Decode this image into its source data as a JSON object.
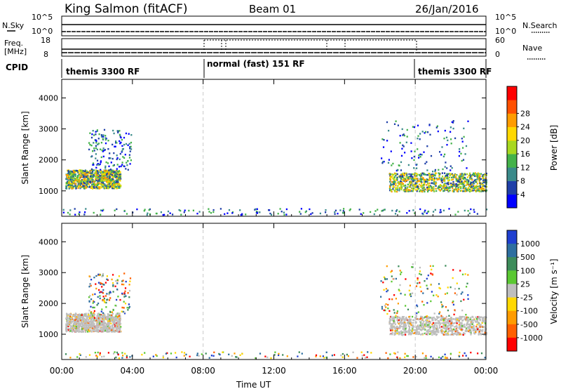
{
  "header": {
    "station": "King Salmon (fitACF)",
    "beam": "Beam 01",
    "date": "26/Jan/2016"
  },
  "strip_panels": {
    "nsky": {
      "label": "N.Sky",
      "ticks": [
        "10^5",
        "10^0"
      ]
    },
    "nsearch": {
      "label": "N.Search",
      "ticks": [
        "10^5",
        "10^0"
      ]
    },
    "freq": {
      "label_top": "Freq.",
      "label_unit": "[MHz]",
      "ticks": [
        "18",
        "8"
      ]
    },
    "nave": {
      "label": "Nave",
      "ticks": [
        "60",
        "0"
      ]
    },
    "cpid": {
      "label": "CPID"
    }
  },
  "cpid_segments": [
    {
      "text": "themis 3300 RF",
      "start_hour": 0
    },
    {
      "text": "normal (fast) 151 RF",
      "start_hour": 8
    },
    {
      "text": "themis 3300 RF",
      "start_hour": 20
    }
  ],
  "chart_data": [
    {
      "type": "heatmap",
      "name": "power",
      "ylabel": "Slant Range [km]",
      "xlabel": "Time UT",
      "x_ticks": [
        "00:00",
        "04:00",
        "08:00",
        "12:00",
        "16:00",
        "20:00",
        "00:00"
      ],
      "xlim_hours": [
        0,
        24
      ],
      "ylim": [
        180,
        4600
      ],
      "y_ticks": [
        1000,
        2000,
        3000,
        4000
      ],
      "colorbar": {
        "label": "Power [dB]",
        "ticks": [
          "4",
          "8",
          "12",
          "16",
          "20",
          "24",
          "28"
        ],
        "colors": [
          "#0000ff",
          "#1f3fa8",
          "#3a8a8a",
          "#44b24a",
          "#a8d820",
          "#ffd800",
          "#ff9c00",
          "#ff5000",
          "#ff0000"
        ]
      },
      "regions": [
        {
          "hours": [
            0.2,
            3.3
          ],
          "range_km": [
            1100,
            1700
          ],
          "level": "mid"
        },
        {
          "hours": [
            1.5,
            3.9
          ],
          "range_km": [
            1700,
            3000
          ],
          "level": "low",
          "sparse": true
        },
        {
          "hours": [
            18.5,
            24
          ],
          "range_km": [
            1000,
            1600
          ],
          "level": "mid"
        },
        {
          "hours": [
            18.0,
            23.0
          ],
          "range_km": [
            1600,
            3300
          ],
          "level": "low",
          "sparse": true
        },
        {
          "hours": [
            0,
            24
          ],
          "range_km": [
            250,
            450
          ],
          "level": "low",
          "sparse": true
        }
      ]
    },
    {
      "type": "heatmap",
      "name": "velocity",
      "ylabel": "Slant Range [km]",
      "xlabel": "Time UT",
      "x_ticks": [
        "00:00",
        "04:00",
        "08:00",
        "12:00",
        "16:00",
        "20:00",
        "00:00"
      ],
      "xlim_hours": [
        0,
        24
      ],
      "ylim": [
        180,
        4600
      ],
      "y_ticks": [
        1000,
        2000,
        3000,
        4000
      ],
      "colorbar": {
        "label": "Velocity [m s⁻¹]",
        "ticks": [
          "1000",
          "500",
          "100",
          "25",
          "-25",
          "-100",
          "-500",
          "-1000"
        ],
        "colors": [
          "#1f3fd0",
          "#2e6fa0",
          "#3d8c5a",
          "#5ac832",
          "#bebebe",
          "#ffd800",
          "#ff9c00",
          "#ff6000",
          "#ff0000"
        ]
      },
      "regions": [
        {
          "hours": [
            0.2,
            3.3
          ],
          "range_km": [
            1100,
            1700
          ],
          "level": "ground"
        },
        {
          "hours": [
            1.5,
            3.9
          ],
          "range_km": [
            1700,
            3000
          ],
          "level": "mixed",
          "sparse": true
        },
        {
          "hours": [
            18.5,
            24
          ],
          "range_km": [
            1000,
            1600
          ],
          "level": "ground"
        },
        {
          "hours": [
            18.0,
            23.0
          ],
          "range_km": [
            1600,
            3300
          ],
          "level": "mixed",
          "sparse": true
        },
        {
          "hours": [
            0,
            24
          ],
          "range_km": [
            250,
            450
          ],
          "level": "mixed",
          "sparse": true
        }
      ]
    }
  ]
}
